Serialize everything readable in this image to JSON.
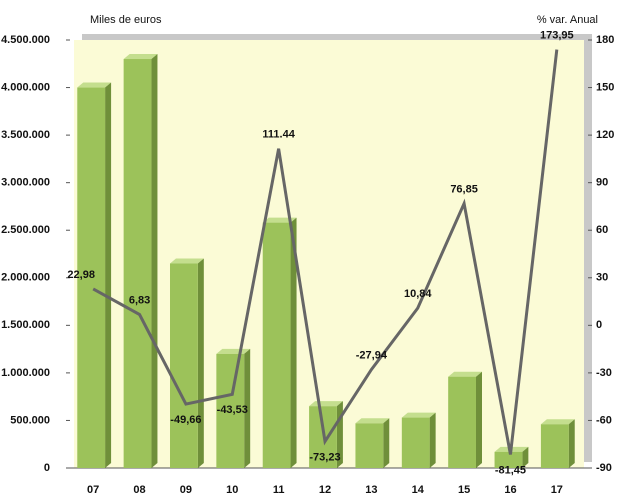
{
  "chart_data": {
    "type": "bar",
    "y_label": "Miles de euros",
    "y2_label": "% var. Anual",
    "categories": [
      "07",
      "08",
      "09",
      "10",
      "11",
      "12",
      "13",
      "14",
      "15",
      "16",
      "17"
    ],
    "series": [
      {
        "name": "Miles de euros",
        "type": "bar",
        "color": "#9cc25a",
        "values": [
          4000000,
          4300000,
          2150000,
          1200000,
          2580000,
          650000,
          470000,
          530000,
          960000,
          170000,
          460000
        ]
      },
      {
        "name": "% var. Anual",
        "type": "line",
        "axis": "y2",
        "color": "#666666",
        "values": [
          22.98,
          6.83,
          -49.66,
          -43.53,
          111.44,
          -73.23,
          -27.94,
          10.84,
          76.85,
          -81.45,
          173.95
        ],
        "value_labels": [
          "22,98",
          "6,83",
          "-49,66",
          "-43,53",
          "111.44",
          "-73,23",
          "-27,94",
          "10,84",
          "76,85",
          "-81,45",
          "173,95"
        ]
      }
    ],
    "ylim": [
      0,
      4500000
    ],
    "yticks": [
      0,
      {
        "value": 500000,
        "label": "500.000"
      },
      {
        "value": 1000000,
        "label": "1.000.000"
      },
      {
        "value": 1500000,
        "label": "1.500.000"
      },
      {
        "value": 2000000,
        "label": "2.000.000"
      },
      {
        "value": 2500000,
        "label": "2.500.000"
      },
      {
        "value": 3000000,
        "label": "3.000.000"
      },
      {
        "value": 3500000,
        "label": "3.500.000"
      },
      {
        "value": 4000000,
        "label": "4.000.000"
      },
      {
        "value": 4500000,
        "label": "4.500.000"
      }
    ],
    "y2lim": [
      -90,
      180
    ],
    "y2ticks": [
      -90,
      -60,
      -30,
      0,
      30,
      60,
      90,
      120,
      150,
      180
    ]
  }
}
